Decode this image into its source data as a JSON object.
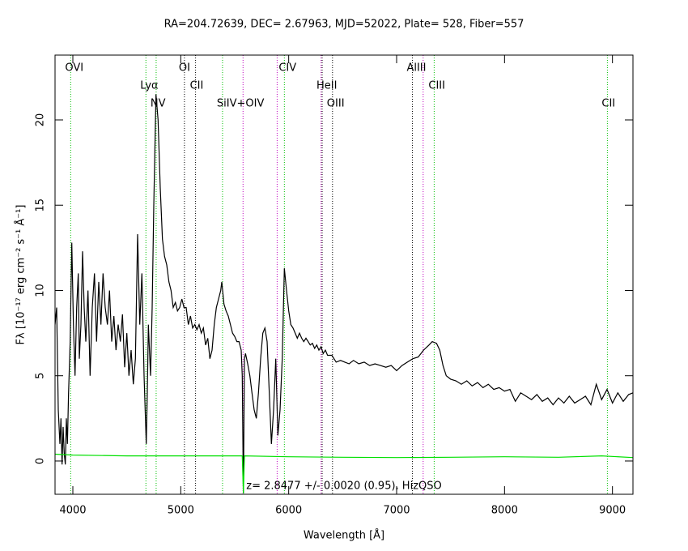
{
  "chart_data": {
    "type": "line",
    "title": "RA=204.72639, DEC= 2.67963, MJD=52022, Plate= 528, Fiber=557",
    "x_label": "Wavelength [Å]",
    "y_label": "Fλ [10⁻¹⁷ erg cm⁻² s⁻¹ Å⁻¹]",
    "annotation": "z= 2.8477 +/- 0.0020 (0.95), HizQSO",
    "xlim": [
      3835,
      9190
    ],
    "ylim": [
      -1.95,
      23.8
    ],
    "xticks": [
      4000,
      5000,
      6000,
      7000,
      8000,
      9000
    ],
    "yticks": [
      0,
      5,
      10,
      15,
      20
    ],
    "series": [
      {
        "color": "#000000",
        "x": [
          3835,
          3850,
          3865,
          3880,
          3890,
          3900,
          3910,
          3920,
          3930,
          3940,
          3950,
          3960,
          3975,
          3990,
          4005,
          4020,
          4035,
          4050,
          4060,
          4075,
          4090,
          4105,
          4120,
          4140,
          4160,
          4180,
          4200,
          4220,
          4240,
          4260,
          4280,
          4300,
          4320,
          4340,
          4360,
          4380,
          4400,
          4420,
          4440,
          4460,
          4480,
          4500,
          4520,
          4540,
          4560,
          4580,
          4600,
          4620,
          4640,
          4660,
          4680,
          4690,
          4700,
          4720,
          4735,
          4750,
          4770,
          4790,
          4810,
          4830,
          4850,
          4870,
          4890,
          4910,
          4930,
          4950,
          4970,
          4990,
          5010,
          5030,
          5050,
          5070,
          5090,
          5110,
          5130,
          5150,
          5170,
          5190,
          5210,
          5230,
          5250,
          5270,
          5290,
          5310,
          5330,
          5350,
          5370,
          5380,
          5400,
          5420,
          5440,
          5460,
          5480,
          5500,
          5520,
          5540,
          5560,
          5570,
          5580,
          5590,
          5600,
          5620,
          5640,
          5660,
          5680,
          5700,
          5720,
          5740,
          5760,
          5780,
          5800,
          5820,
          5840,
          5860,
          5880,
          5900,
          5920,
          5940,
          5960,
          5980,
          6000,
          6020,
          6040,
          6060,
          6080,
          6100,
          6120,
          6140,
          6160,
          6180,
          6200,
          6220,
          6240,
          6260,
          6280,
          6300,
          6320,
          6340,
          6360,
          6400,
          6440,
          6480,
          6520,
          6560,
          6600,
          6650,
          6700,
          6750,
          6800,
          6850,
          6900,
          6950,
          7000,
          7050,
          7100,
          7150,
          7200,
          7250,
          7300,
          7330,
          7370,
          7400,
          7430,
          7460,
          7500,
          7550,
          7600,
          7650,
          7700,
          7750,
          7800,
          7850,
          7900,
          7950,
          8000,
          8050,
          8100,
          8150,
          8200,
          8250,
          8300,
          8350,
          8400,
          8450,
          8500,
          8550,
          8600,
          8650,
          8700,
          8750,
          8800,
          8850,
          8900,
          8950,
          9000,
          9050,
          9100,
          9150,
          9190
        ],
        "values": [
          8.0,
          9.0,
          3,
          1,
          2.5,
          -0.2,
          2,
          0.5,
          -0.2,
          2.5,
          1,
          4,
          7,
          12.8,
          8,
          5,
          9,
          11,
          6,
          8,
          12.3,
          9,
          7,
          10,
          5,
          9,
          11,
          7,
          10.5,
          8,
          11,
          9,
          8,
          10,
          7,
          8.5,
          6.5,
          8,
          7,
          8.6,
          5.5,
          7.5,
          5,
          6.5,
          4.5,
          6,
          13.3,
          8,
          11,
          5,
          1,
          4,
          8,
          5,
          9,
          15,
          21.5,
          20,
          16,
          13,
          12,
          11.5,
          10.5,
          10,
          9,
          9.3,
          8.8,
          9,
          9.5,
          9,
          9,
          8,
          8.5,
          7.8,
          8,
          7.7,
          8,
          7.5,
          7.8,
          6.8,
          7.2,
          6,
          6.5,
          8,
          9,
          9.5,
          10,
          10.5,
          9.2,
          8.8,
          8.5,
          8,
          7.5,
          7.3,
          7,
          7,
          6.5,
          5,
          -1.9,
          6,
          6.3,
          5.7,
          5,
          4,
          3,
          2.5,
          4,
          6,
          7.5,
          7.8,
          7,
          4,
          1,
          3,
          6,
          1.5,
          3,
          6,
          11.3,
          10,
          8.8,
          8,
          7.8,
          7.5,
          7.2,
          7.5,
          7.2,
          7,
          7.2,
          7,
          6.8,
          6.9,
          6.6,
          6.8,
          6.5,
          6.7,
          6.3,
          6.5,
          6.2,
          6.2,
          5.8,
          5.9,
          5.8,
          5.7,
          5.9,
          5.7,
          5.8,
          5.6,
          5.7,
          5.6,
          5.5,
          5.6,
          5.3,
          5.6,
          5.8,
          6.0,
          6.1,
          6.5,
          6.8,
          7.0,
          6.9,
          6.5,
          5.6,
          5.0,
          4.8,
          4.7,
          4.5,
          4.7,
          4.4,
          4.6,
          4.3,
          4.5,
          4.2,
          4.3,
          4.1,
          4.2,
          3.5,
          4.0,
          3.8,
          3.6,
          3.9,
          3.5,
          3.7,
          3.3,
          3.7,
          3.4,
          3.8,
          3.4,
          3.6,
          3.8,
          3.3,
          4.5,
          3.6,
          4.2,
          3.4,
          4.0,
          3.5,
          3.9,
          4.0
        ]
      },
      {
        "color": "#00e000",
        "x": [
          3835,
          4000,
          4500,
          5000,
          5570,
          5580,
          5590,
          6000,
          6500,
          7000,
          7500,
          8000,
          8500,
          8900,
          9190
        ],
        "values": [
          0.4,
          0.35,
          0.3,
          0.3,
          0.3,
          -1.9,
          0.3,
          0.25,
          0.22,
          0.2,
          0.22,
          0.25,
          0.22,
          0.3,
          0.2
        ]
      }
    ],
    "line_markers": [
      {
        "label": "OVI",
        "x": 3980,
        "color": "#00c000"
      },
      {
        "label": "Lyα",
        "x": 4677,
        "color": "#00c000"
      },
      {
        "label": "NV",
        "x": 4772,
        "color": "#00c000"
      },
      {
        "label": "OI",
        "x": 5034,
        "color": "#000000"
      },
      {
        "label": "CII",
        "x": 5137,
        "color": "#000000"
      },
      {
        "label": "SiIV+OIV",
        "x": 5387,
        "color": "#00c000"
      },
      {
        "label": "CIV",
        "x": 5960,
        "color": "#00c000"
      },
      {
        "label": "HeII",
        "x": 6310,
        "color": "#000000"
      },
      {
        "label": "OIII",
        "x": 6406,
        "color": "#000000"
      },
      {
        "label": "AlIII",
        "x": 7146,
        "color": "#000000"
      },
      {
        "label": "CIII",
        "x": 7348,
        "color": "#00c000"
      },
      {
        "label": "CII",
        "x": 8953,
        "color": "#00c000"
      }
    ],
    "sky_lines": {
      "color": "#c000c0",
      "x": [
        5577,
        5893,
        6300,
        7246
      ]
    }
  }
}
